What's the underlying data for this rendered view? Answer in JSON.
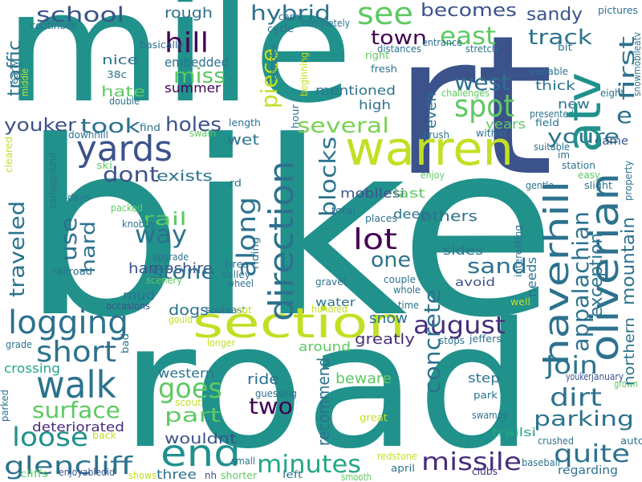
{
  "words": [
    {
      "text": "mile",
      "color": "#21918c"
    },
    {
      "text": "rt",
      "color": "#3b528b"
    },
    {
      "text": "bike",
      "color": "#21918c"
    },
    {
      "text": "road",
      "color": "#21918c"
    },
    {
      "text": "warren",
      "color": "#c2df23"
    },
    {
      "text": "section",
      "color": "#c2df23"
    },
    {
      "text": "yards",
      "color": "#3b528b"
    },
    {
      "text": "walk",
      "color": "#2c728e"
    },
    {
      "text": "end",
      "color": "#21918c"
    },
    {
      "text": "logging",
      "color": "#2c728e"
    },
    {
      "text": "short",
      "color": "#2c728e"
    },
    {
      "text": "loose",
      "color": "#21918c"
    },
    {
      "text": "glencliff",
      "color": "#2c728e"
    },
    {
      "text": "minutes",
      "color": "#22a884"
    },
    {
      "text": "missile",
      "color": "#472d7b"
    },
    {
      "text": "quite",
      "color": "#2c728e"
    },
    {
      "text": "dirt",
      "color": "#2c728e"
    },
    {
      "text": "parking",
      "color": "#2c728e"
    },
    {
      "text": "join",
      "color": "#2c728e"
    },
    {
      "text": "august",
      "color": "#472d7b"
    },
    {
      "text": "lot",
      "color": "#440154"
    },
    {
      "text": "one",
      "color": "#2c728e"
    },
    {
      "text": "sand",
      "color": "#2c728e"
    },
    {
      "text": "spot",
      "color": "#5ec962"
    },
    {
      "text": "west",
      "color": "#2c728e"
    },
    {
      "text": "east",
      "color": "#5ec962"
    },
    {
      "text": "track",
      "color": "#2c728e"
    },
    {
      "text": "sandy",
      "color": "#3b528b"
    },
    {
      "text": "becomes",
      "color": "#3b528b"
    },
    {
      "text": "see",
      "color": "#5ec962"
    },
    {
      "text": "hybrid",
      "color": "#2c728e"
    },
    {
      "text": "school",
      "color": "#3b528b"
    },
    {
      "text": "hill",
      "color": "#440154"
    },
    {
      "text": "miss",
      "color": "#5ec962"
    },
    {
      "text": "took",
      "color": "#2c728e"
    },
    {
      "text": "youker",
      "color": "#3b528b"
    },
    {
      "text": "holes",
      "color": "#3b528b"
    },
    {
      "text": "several",
      "color": "#7ad151"
    },
    {
      "text": "youre",
      "color": "#2c728e"
    },
    {
      "text": "e",
      "color": "#2c728e"
    },
    {
      "text": "town",
      "color": "#440154"
    },
    {
      "text": "dont",
      "color": "#3b528b"
    },
    {
      "text": "exists",
      "color": "#2c728e"
    },
    {
      "text": "rail",
      "color": "#5ec962"
    },
    {
      "text": "way",
      "color": "#2c728e"
    },
    {
      "text": "hampshire",
      "color": "#3b528b"
    },
    {
      "text": "stone",
      "color": "#2c728e"
    },
    {
      "text": "goes",
      "color": "#5ec962"
    },
    {
      "text": "part",
      "color": "#5ec962"
    },
    {
      "text": "surface",
      "color": "#5ec962"
    },
    {
      "text": "two",
      "color": "#440154"
    },
    {
      "text": "wouldnt",
      "color": "#3b528b"
    },
    {
      "text": "deteriorated",
      "color": "#472d7b"
    },
    {
      "text": "western",
      "color": "#2c728e"
    },
    {
      "text": "greatly",
      "color": "#472d7b"
    },
    {
      "text": "snow",
      "color": "#2c728e"
    },
    {
      "text": "around",
      "color": "#5ec962"
    },
    {
      "text": "beware",
      "color": "#5ec962"
    },
    {
      "text": "ride",
      "color": "#2c728e"
    },
    {
      "text": "mentioned",
      "color": "#2c728e"
    },
    {
      "text": "high",
      "color": "#2c728e"
    },
    {
      "text": "nice",
      "color": "#2c728e"
    },
    {
      "text": "hate",
      "color": "#5ec962"
    },
    {
      "text": "rough",
      "color": "#2c728e"
    },
    {
      "text": "embedded",
      "color": "#2c728e"
    },
    {
      "text": "summer",
      "color": "#440154"
    },
    {
      "text": "mobilesi",
      "color": "#3b528b"
    },
    {
      "text": "others",
      "color": "#2c728e"
    },
    {
      "text": "last",
      "color": "#5ec962"
    },
    {
      "text": "deep",
      "color": "#2c728e"
    },
    {
      "text": "sides",
      "color": "#2c728e"
    },
    {
      "text": "avoid",
      "color": "#3b528b"
    },
    {
      "text": "new",
      "color": "#2c728e"
    },
    {
      "text": "thick",
      "color": "#2c728e"
    },
    {
      "text": "years",
      "color": "#5ec962"
    },
    {
      "text": "game",
      "color": "#3b528b"
    },
    {
      "text": "wet",
      "color": "#2c728e"
    },
    {
      "text": "mud",
      "color": "#2c728e"
    },
    {
      "text": "dogs",
      "color": "#2c728e"
    },
    {
      "text": "water",
      "color": "#2c728e"
    },
    {
      "text": "step",
      "color": "#2c728e"
    },
    {
      "text": "trailsi",
      "color": "#22a884"
    },
    {
      "text": "crossing",
      "color": "#22a884"
    },
    {
      "text": "three",
      "color": "#2c728e"
    },
    {
      "text": "regarding",
      "color": "#2c728e"
    },
    {
      "text": "crushed",
      "color": "#2c728e"
    },
    {
      "text": "auto",
      "color": "#2c728e"
    },
    {
      "text": "baseball",
      "color": "#2c728e"
    },
    {
      "text": "clubs",
      "color": "#472d7b"
    },
    {
      "text": "smooth",
      "color": "#5ec962"
    },
    {
      "text": "left",
      "color": "#2c728e"
    },
    {
      "text": "shorter",
      "color": "#5ec962"
    },
    {
      "text": "nh",
      "color": "#3b528b"
    },
    {
      "text": "redstone",
      "color": "#c2df23"
    },
    {
      "text": "april",
      "color": "#2c728e"
    },
    {
      "text": "small",
      "color": "#2c728e"
    },
    {
      "text": "cliffs",
      "color": "#5ec962"
    },
    {
      "text": "enjoyabledid",
      "color": "#3b528b"
    },
    {
      "text": "shows",
      "color": "#c2df23"
    },
    {
      "text": "scout",
      "color": "#c2df23"
    },
    {
      "text": "guessing",
      "color": "#2c728e"
    },
    {
      "text": "great",
      "color": "#c2df23"
    },
    {
      "text": "swampy",
      "color": "#2c728e"
    },
    {
      "text": "park",
      "color": "#2c728e"
    },
    {
      "text": "youker",
      "color": "#3b528b"
    },
    {
      "text": "january",
      "color": "#3b528b"
    },
    {
      "text": "grown",
      "color": "#5ec962"
    },
    {
      "text": "jeffers",
      "color": "#2c728e"
    },
    {
      "text": "stops",
      "color": "#2c728e"
    },
    {
      "text": "longer",
      "color": "#c2df23"
    },
    {
      "text": "gould",
      "color": "#c2df23"
    },
    {
      "text": "grade",
      "color": "#2c728e"
    },
    {
      "text": "occasions",
      "color": "#3b528b"
    },
    {
      "text": "souteast",
      "color": "#2c728e"
    },
    {
      "text": "cut",
      "color": "#c2df23"
    },
    {
      "text": "hundred",
      "color": "#c2df23"
    },
    {
      "text": "time",
      "color": "#2c728e"
    },
    {
      "text": "well",
      "color": "#c2df23"
    },
    {
      "text": "couple",
      "color": "#2c728e"
    },
    {
      "text": "whole",
      "color": "#2c728e"
    },
    {
      "text": "gravel",
      "color": "#2c728e"
    },
    {
      "text": "scenery",
      "color": "#5ec962"
    },
    {
      "text": "wheel",
      "color": "#2c728e"
    },
    {
      "text": "valley",
      "color": "#2c728e"
    },
    {
      "text": "tires",
      "color": "#2c728e"
    },
    {
      "text": "upgrade",
      "color": "#2c728e"
    },
    {
      "text": "railroad",
      "color": "#2c728e"
    },
    {
      "text": "places",
      "color": "#2c728e"
    },
    {
      "text": "knobby",
      "color": "#2c728e"
    },
    {
      "text": "packed",
      "color": "#5ec962"
    },
    {
      "text": "ski",
      "color": "#5ec962"
    },
    {
      "text": "days",
      "color": "#2c728e"
    },
    {
      "text": "downhill",
      "color": "#2c728e"
    },
    {
      "text": "find",
      "color": "#2c728e"
    },
    {
      "text": "swain",
      "color": "#5ec962"
    },
    {
      "text": "rd",
      "color": "#2c728e"
    },
    {
      "text": "length",
      "color": "#2c728e"
    },
    {
      "text": "total",
      "color": "#2c728e"
    },
    {
      "text": "enjoy",
      "color": "#5ec962"
    },
    {
      "text": "brush",
      "color": "#2c728e"
    },
    {
      "text": "within",
      "color": "#2c728e"
    },
    {
      "text": "presented",
      "color": "#2c728e"
    },
    {
      "text": "field",
      "color": "#2c728e"
    },
    {
      "text": "suitable",
      "color": "#2c728e"
    },
    {
      "text": "im",
      "color": "#2c728e"
    },
    {
      "text": "station",
      "color": "#2c728e"
    },
    {
      "text": "easy",
      "color": "#5ec962"
    },
    {
      "text": "gentle",
      "color": "#2c728e"
    },
    {
      "text": "slight",
      "color": "#2c728e"
    },
    {
      "text": "eight",
      "color": "#2c728e"
    },
    {
      "text": "variable",
      "color": "#2c728e"
    },
    {
      "text": "bit",
      "color": "#2c728e"
    },
    {
      "text": "pictures",
      "color": "#2c728e"
    },
    {
      "text": "stretch",
      "color": "#2c728e"
    },
    {
      "text": "entrance",
      "color": "#2c728e"
    },
    {
      "text": "distances",
      "color": "#2c728e"
    },
    {
      "text": "right",
      "color": "#5ec962"
    },
    {
      "text": "fresh",
      "color": "#2c728e"
    },
    {
      "text": "challenges",
      "color": "#5ec962"
    },
    {
      "text": "completely",
      "color": "#2c728e"
    },
    {
      "text": "carry",
      "color": "#2c728e"
    },
    {
      "text": "cycle",
      "color": "#2c728e"
    },
    {
      "text": "continues",
      "color": "#2c728e"
    },
    {
      "text": "basically",
      "color": "#2c728e"
    },
    {
      "text": "38c",
      "color": "#2c728e"
    },
    {
      "text": "double",
      "color": "#2c728e"
    },
    {
      "text": "back",
      "color": "#c2df23"
    },
    {
      "text": "haverhill",
      "color": "#2c728e"
    },
    {
      "text": "oliverian",
      "color": "#2c728e"
    },
    {
      "text": "atv",
      "color": "#21918c"
    },
    {
      "text": "appalachian",
      "color": "#2c728e"
    },
    {
      "text": "direction",
      "color": "#2c728e"
    },
    {
      "text": "along",
      "color": "#2c728e"
    },
    {
      "text": "piece",
      "color": "#c2df23"
    },
    {
      "text": "concrete",
      "color": "#2c728e"
    },
    {
      "text": "blocks",
      "color": "#2c728e"
    },
    {
      "text": "first",
      "color": "#2c728e"
    },
    {
      "text": "use",
      "color": "#2c728e"
    },
    {
      "text": "hard",
      "color": "#2c728e"
    },
    {
      "text": "traveled",
      "color": "#2c728e"
    },
    {
      "text": "traffic",
      "color": "#2c728e"
    },
    {
      "text": "even",
      "color": "#2c728e"
    },
    {
      "text": "exception",
      "color": "#2c728e"
    },
    {
      "text": "mountain",
      "color": "#2c728e"
    },
    {
      "text": "northern",
      "color": "#2c728e"
    },
    {
      "text": "recommend",
      "color": "#2c728e"
    },
    {
      "text": "needs",
      "color": "#2c728e"
    },
    {
      "text": "interesting",
      "color": "#2c728e"
    },
    {
      "text": "riding",
      "color": "#2c728e"
    },
    {
      "text": "cleared",
      "color": "#c2df23"
    },
    {
      "text": "campground",
      "color": "#2c728e"
    },
    {
      "text": "early",
      "color": "#2c728e"
    },
    {
      "text": "middle",
      "color": "#c2df23"
    },
    {
      "text": "beginning",
      "color": "#c2df23"
    },
    {
      "text": "hour",
      "color": "#2c728e"
    },
    {
      "text": "complex",
      "color": "#2c728e"
    },
    {
      "text": "property",
      "color": "#2c728e"
    },
    {
      "text": "snowmobileatv",
      "color": "#2c728e"
    },
    {
      "text": "bad",
      "color": "#2c728e"
    },
    {
      "text": "parked",
      "color": "#2c728e"
    }
  ]
}
